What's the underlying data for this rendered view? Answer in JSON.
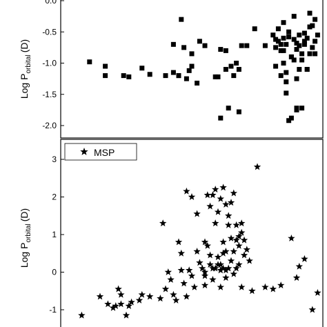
{
  "chart_data": [
    {
      "type": "scatter",
      "panel": "top",
      "ylabel_main": "Log P",
      "ylabel_sub": "orbital",
      "ylabel_unit": "(D)",
      "xlabel": "",
      "ylim": [
        -2.1,
        0.05
      ],
      "yticks": [
        0.0,
        -0.5,
        -1.0,
        -1.5,
        -2.0
      ],
      "ytick_labels": [
        "0.0",
        "-0.5",
        "-1.0",
        "-1.5",
        "-2.0"
      ],
      "marker": "square",
      "legend": [],
      "grid": false,
      "series": [
        {
          "x": [
            0.11,
            0.17,
            0.17,
            0.24,
            0.26,
            0.31,
            0.34,
            0.4,
            0.43,
            0.43,
            0.45,
            0.45,
            0.46,
            0.47,
            0.48,
            0.49,
            0.5,
            0.5,
            0.52,
            0.53,
            0.55,
            0.59,
            0.6,
            0.61,
            0.61,
            0.63,
            0.63,
            0.64,
            0.65,
            0.66,
            0.67,
            0.68,
            0.68,
            0.69,
            0.71,
            0.74,
            0.78,
            0.81,
            0.82,
            0.83,
            0.84,
            0.85,
            0.85,
            0.86,
            0.86,
            0.87,
            0.88,
            0.89,
            0.9,
            0.9,
            0.91,
            0.92,
            0.93,
            0.94,
            0.95,
            0.96,
            0.97,
            0.98,
            0.82,
            0.84,
            0.86,
            0.88,
            0.9,
            0.92,
            0.94,
            0.96,
            0.83,
            0.85,
            0.87,
            0.89,
            0.91,
            0.93,
            0.95,
            0.97,
            0.86,
            0.88,
            0.9,
            0.92,
            0.94,
            0.87,
            0.9,
            0.85,
            0.89,
            0.91,
            0.93,
            0.95,
            0.97,
            0.82,
            0.84
          ],
          "y": [
            -0.98,
            -1.05,
            -1.2,
            -1.2,
            -1.22,
            -1.08,
            -1.18,
            -1.2,
            -1.15,
            -0.7,
            -1.2,
            -1.2,
            -0.3,
            -0.75,
            -1.25,
            -1.12,
            -0.85,
            -1.05,
            -1.32,
            -0.65,
            -0.72,
            -1.22,
            -1.22,
            -0.78,
            -1.88,
            -0.8,
            -1.1,
            -1.72,
            -1.05,
            -1.2,
            -1.0,
            -1.78,
            -1.1,
            -0.72,
            -0.72,
            -0.45,
            -0.72,
            -0.55,
            -0.75,
            -0.65,
            -0.8,
            -0.6,
            -1.0,
            -0.7,
            -1.15,
            -0.5,
            -0.9,
            -0.62,
            -1.25,
            -0.78,
            -0.55,
            -0.95,
            -0.7,
            -1.1,
            -0.85,
            -0.4,
            -0.65,
            -0.55,
            -1.05,
            -1.2,
            -1.3,
            -0.9,
            -0.68,
            -0.85,
            -0.6,
            -0.75,
            -0.45,
            -0.8,
            -0.58,
            -0.95,
            -1.1,
            -0.65,
            -0.42,
            -0.85,
            -1.48,
            -1.88,
            -1.75,
            -1.72,
            -1.1,
            -1.92,
            -1.72,
            -0.35,
            -0.25,
            -0.72,
            -0.52,
            -0.2,
            -0.3,
            -0.62,
            -0.7
          ]
        }
      ]
    },
    {
      "type": "scatter",
      "panel": "bottom",
      "ylabel_main": "Log P",
      "ylabel_sub": "orbital",
      "ylabel_unit": "(D)",
      "xlabel": "",
      "ylim": [
        -1.4,
        3.4
      ],
      "yticks": [
        3,
        2,
        1,
        0,
        -1
      ],
      "ytick_labels": [
        "3",
        "2",
        "1",
        "0",
        "-1"
      ],
      "marker": "star",
      "legend": [
        {
          "label": "MSP"
        }
      ],
      "legend_position": "top-left",
      "grid": false,
      "series": [
        {
          "name": "MSP",
          "x": [
            0.08,
            0.15,
            0.18,
            0.2,
            0.21,
            0.22,
            0.23,
            0.23,
            0.25,
            0.26,
            0.27,
            0.3,
            0.31,
            0.34,
            0.38,
            0.39,
            0.4,
            0.41,
            0.42,
            0.43,
            0.44,
            0.45,
            0.46,
            0.47,
            0.48,
            0.49,
            0.5,
            0.51,
            0.52,
            0.53,
            0.54,
            0.55,
            0.55,
            0.56,
            0.57,
            0.58,
            0.58,
            0.59,
            0.6,
            0.61,
            0.61,
            0.62,
            0.62,
            0.63,
            0.63,
            0.64,
            0.65,
            0.66,
            0.67,
            0.68,
            0.69,
            0.7,
            0.71,
            0.72,
            0.56,
            0.57,
            0.58,
            0.59,
            0.6,
            0.61,
            0.62,
            0.63,
            0.64,
            0.65,
            0.66,
            0.67,
            0.68,
            0.69,
            0.7,
            0.55,
            0.57,
            0.59,
            0.61,
            0.63,
            0.65,
            0.67,
            0.69,
            0.55,
            0.6,
            0.62,
            0.64,
            0.66,
            0.68,
            0.78,
            0.81,
            0.84,
            0.88,
            0.9,
            0.91,
            0.93,
            0.96,
            0.98,
            0.48,
            0.5,
            0.52,
            0.46,
            0.73,
            0.75
          ],
          "y": [
            -1.15,
            -0.65,
            -0.85,
            -0.95,
            -0.9,
            -0.45,
            -0.6,
            -0.85,
            -1.15,
            -0.9,
            -0.8,
            -0.75,
            -0.6,
            -0.65,
            -0.7,
            1.3,
            -0.45,
            0.0,
            -0.2,
            -0.6,
            -0.75,
            0.8,
            0.5,
            -0.3,
            -0.65,
            0.05,
            -0.1,
            -0.4,
            0.55,
            0.25,
            0.1,
            0.0,
            -0.35,
            0.7,
            0.45,
            0.1,
            -0.2,
            1.3,
            0.2,
            0.05,
            -0.4,
            0.8,
            0.5,
            0.05,
            -0.15,
            1.25,
            0.9,
            0.55,
            0.1,
            0.7,
            -0.4,
            0.85,
            0.6,
            0.3,
            2.05,
            1.75,
            2.05,
            2.2,
            1.6,
            1.95,
            2.25,
            1.8,
            1.5,
            1.85,
            2.1,
            1.25,
            0.95,
            1.05,
            0.45,
            0.8,
            0.2,
            0.1,
            0.2,
            0.55,
            0.3,
            0.85,
            1.3,
            -0.1,
            0.4,
            0.1,
            0.1,
            -0.05,
            0.2,
            -0.4,
            -0.45,
            -0.35,
            0.9,
            -0.15,
            0.15,
            0.35,
            -1.0,
            -0.55,
            2.15,
            2.0,
            1.55,
            0.05,
            -0.5,
            2.8
          ]
        }
      ]
    }
  ]
}
